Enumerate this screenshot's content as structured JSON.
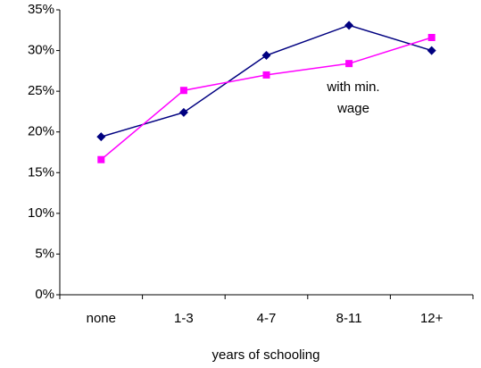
{
  "chart_data": {
    "type": "line",
    "categories": [
      "none",
      "1-3",
      "4-7",
      "8-11",
      "12+"
    ],
    "x_label": "years of schooling",
    "annotation": "with min. wage",
    "series": [
      {
        "color": "#000080",
        "marker": "diamond",
        "values": [
          19.4,
          22.4,
          29.4,
          33.1,
          30.0
        ]
      },
      {
        "color": "#ff00ff",
        "marker": "square",
        "values": [
          16.6,
          25.1,
          27.0,
          28.4,
          31.6
        ]
      }
    ],
    "ylim": [
      0,
      35
    ],
    "yticks": [
      {
        "value": 0,
        "label": "0%"
      },
      {
        "value": 5,
        "label": "5%"
      },
      {
        "value": 10,
        "label": "10%"
      },
      {
        "value": 15,
        "label": "15%"
      },
      {
        "value": 20,
        "label": "20%"
      },
      {
        "value": 25,
        "label": "25%"
      },
      {
        "value": 30,
        "label": "30%"
      },
      {
        "value": 35,
        "label": "35%"
      }
    ],
    "grid": false
  }
}
